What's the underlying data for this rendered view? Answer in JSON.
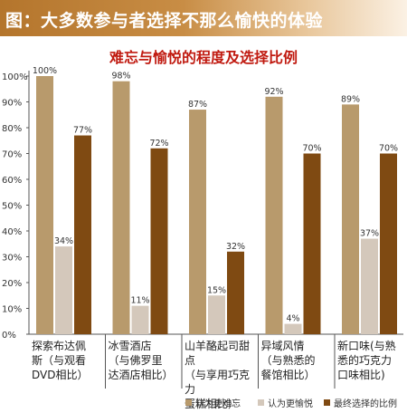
{
  "header": {
    "title": "图：大多数参与者选择不那么愉快的体验"
  },
  "chart_data": {
    "type": "bar",
    "title": "难忘与愉悦的程度及选择比例",
    "categories": [
      [
        "探索布达佩",
        "斯（与观看",
        "DVD相比）"
      ],
      [
        "冰雪酒店",
        "（与佛罗里",
        "达酒店相比）"
      ],
      [
        "山羊酪起司甜点",
        "（与享用巧克力",
        "蛋糕相比）"
      ],
      [
        "异域风情",
        "（与熟悉的",
        "餐馆相比）"
      ],
      [
        "新口味(与熟",
        "悉的巧克力",
        "口味相比)"
      ]
    ],
    "series": [
      {
        "name": "认为更难忘",
        "color": "#b89a6c",
        "values": [
          100,
          98,
          87,
          92,
          89
        ],
        "labels": [
          "100%",
          "98%",
          "87%",
          "92%",
          "89%"
        ]
      },
      {
        "name": "认为更愉悦",
        "color": "#d4c8bb",
        "values": [
          34,
          11,
          15,
          4,
          37
        ],
        "labels": [
          "34%",
          "11%",
          "15%",
          "4%",
          "37%"
        ]
      },
      {
        "name": "最终选择的比例",
        "color": "#7f4a12",
        "values": [
          77,
          72,
          32,
          70,
          70
        ],
        "labels": [
          "77%",
          "72%",
          "32%",
          "70%",
          "70%"
        ]
      }
    ],
    "yticks": [
      "0%",
      "10%",
      "20%",
      "30%",
      "40%",
      "50%",
      "60%",
      "70%",
      "80%",
      "90%",
      "100%"
    ],
    "ylim": [
      0,
      100
    ],
    "grid": false,
    "legend": "bottom-right"
  }
}
